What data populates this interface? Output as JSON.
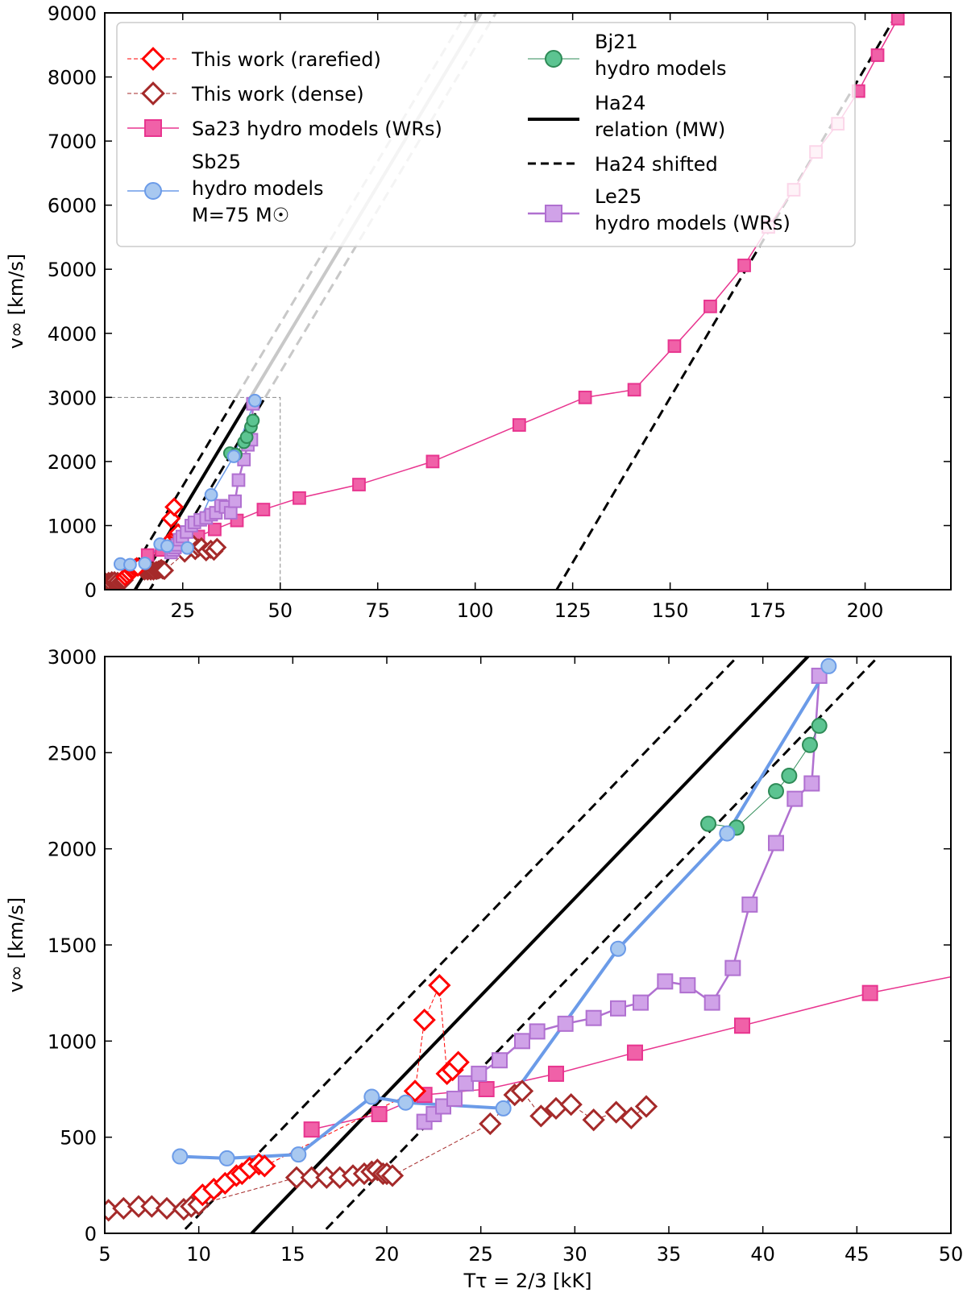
{
  "colors": {
    "rarefied": "#ff0000",
    "dense": "#a52a2a",
    "sa23": "#e8358f",
    "sa23_fill": "#f061a8",
    "sb25": "#6b9be8",
    "sb25_fill": "#a8c8f0",
    "bj21": "#2e8b57",
    "bj21_fill": "#5cc491",
    "le25": "#b070d0",
    "le25_fill": "#d0a2e8",
    "ha24": "#000000",
    "ha24_ext": "#c8c8c8"
  },
  "chart_data": [
    {
      "type": "line",
      "panel": "top",
      "xlabel": "",
      "ylabel": "v∞ [km/s]",
      "xlim": [
        5,
        222
      ],
      "ylim": [
        0,
        9000
      ],
      "xticks": [
        25,
        50,
        75,
        100,
        125,
        150,
        175,
        200
      ],
      "yticks": [
        0,
        1000,
        2000,
        3000,
        4000,
        5000,
        6000,
        7000,
        8000,
        9000
      ],
      "inset_box": {
        "x": [
          5,
          50
        ],
        "y": [
          0,
          3000
        ]
      },
      "legend_position": "top",
      "legend": [
        {
          "label": "This work (rarefied)",
          "series": "rarefied"
        },
        {
          "label": "This work (dense)",
          "series": "dense"
        },
        {
          "label": "Sa23 hydro models (WRs)",
          "series": "sa23"
        },
        {
          "label": "Sb25\nhydro models\nM=75 M☉",
          "series": "sb25"
        },
        {
          "label": "Bj21\nhydro models",
          "series": "bj21"
        },
        {
          "label": "Ha24\nrelation (MW)",
          "series": "ha24"
        },
        {
          "label": "Ha24 shifted",
          "series": "ha24_shift"
        },
        {
          "label": "Le25\nhydro models (WRs)",
          "series": "le25"
        }
      ]
    },
    {
      "type": "line",
      "panel": "bottom",
      "xlabel": "Tτ = 2/3 [kK]",
      "ylabel": "v∞ [km/s]",
      "xlim": [
        5,
        50
      ],
      "ylim": [
        0,
        3000
      ],
      "xticks": [
        5,
        10,
        15,
        20,
        25,
        30,
        35,
        40,
        45,
        50
      ],
      "yticks": [
        0,
        500,
        1000,
        1500,
        2000,
        2500,
        3000
      ]
    }
  ],
  "series": {
    "rarefied": {
      "name": "This work (rarefied)",
      "x": [
        10.2,
        10.8,
        11.4,
        12.0,
        12.3,
        12.7,
        13.2,
        13.5,
        21.5,
        22.0,
        22.8,
        23.2,
        23.5,
        23.8
      ],
      "y": [
        200,
        230,
        260,
        300,
        310,
        340,
        360,
        350,
        740,
        1110,
        1290,
        830,
        850,
        890
      ]
    },
    "dense": {
      "name": "This work (dense)",
      "x": [
        5.2,
        6.0,
        6.8,
        7.5,
        8.3,
        9.2,
        9.6,
        10.0,
        15.2,
        16.0,
        16.8,
        17.5,
        18.2,
        18.8,
        19.2,
        19.5,
        19.8,
        20.0,
        20.3,
        25.5,
        26.8,
        27.2,
        28.2,
        29.0,
        29.8,
        31.0,
        32.2,
        33.0,
        33.8
      ],
      "y": [
        120,
        130,
        140,
        140,
        130,
        125,
        140,
        150,
        290,
        290,
        290,
        290,
        300,
        310,
        320,
        330,
        310,
        310,
        300,
        570,
        720,
        740,
        610,
        650,
        670,
        590,
        630,
        600,
        660
      ]
    },
    "sa23": {
      "name": "Sa23 hydro models (WRs)",
      "x": [
        16.0,
        19.6,
        22.0,
        25.3,
        29.0,
        33.2,
        38.9,
        45.7,
        54.9,
        70.2,
        89.1,
        111.3,
        128.2,
        140.8,
        151.1,
        160.3,
        169.0,
        175.2,
        181.7,
        187.4,
        193.0,
        198.3,
        203.2,
        208.4
      ],
      "y": [
        540,
        620,
        720,
        750,
        830,
        940,
        1080,
        1250,
        1430,
        1640,
        2000,
        2570,
        3000,
        3120,
        3800,
        4420,
        5060,
        5660,
        6240,
        6830,
        7270,
        7780,
        8340,
        8910
      ]
    },
    "sb25": {
      "name": "Sb25 hydro models M=75 M☉",
      "x": [
        9.0,
        11.5,
        15.3,
        19.2,
        21.0,
        26.2,
        32.3,
        38.1,
        43.5
      ],
      "y": [
        400,
        390,
        410,
        710,
        680,
        650,
        1480,
        2080,
        2950
      ]
    },
    "bj21": {
      "name": "Bj21 hydro models",
      "x": [
        37.1,
        38.6,
        40.7,
        41.4,
        42.5,
        43.0
      ],
      "y": [
        2130,
        2110,
        2300,
        2380,
        2540,
        2640
      ]
    },
    "le25": {
      "name": "Le25 hydro models (WRs)",
      "x": [
        22.0,
        22.5,
        23.0,
        23.6,
        24.2,
        24.9,
        26.0,
        27.2,
        28.0,
        29.5,
        31.0,
        32.3,
        33.5,
        34.8,
        36.0,
        37.3,
        38.4,
        39.3,
        40.7,
        41.7,
        42.6
      ],
      "y": [
        580,
        620,
        660,
        700,
        780,
        830,
        900,
        1000,
        1050,
        1090,
        1120,
        1170,
        1200,
        1310,
        1290,
        1200,
        1380,
        1710,
        2030,
        2260,
        2340
      ]
    },
    "le25_top": {
      "x": [
        43.0
      ],
      "y": [
        2900
      ]
    },
    "ha24": {
      "name": "Ha24 relation (MW)",
      "slope": 101.4,
      "intercept": -1299
    },
    "ha24_shift": {
      "name": "Ha24 shifted",
      "offsets": [
        380,
        -380
      ],
      "wr_line_x": [
        120.9,
        210.0
      ],
      "wr_line_y": [
        0,
        9170
      ]
    }
  }
}
